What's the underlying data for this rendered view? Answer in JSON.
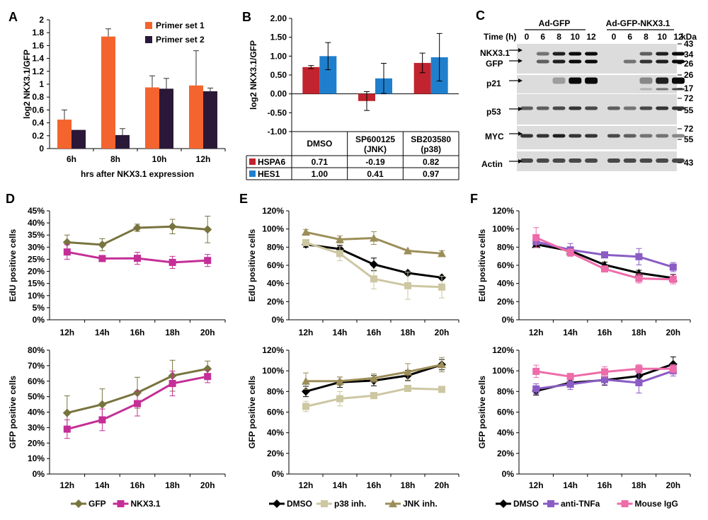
{
  "colors": {
    "orange": "#F4642E",
    "dark_purple": "#2B1838",
    "red": "#C1242E",
    "blue": "#1F7FCC",
    "olive": "#78743E",
    "magenta": "#C42E96",
    "black": "#000000",
    "khaki": "#CDC7A2",
    "tan": "#9C8E58",
    "purple": "#8A5CC4",
    "pink": "#EE6CAA"
  },
  "panels": {
    "A": {
      "label": "A"
    },
    "B": {
      "label": "B"
    },
    "C": {
      "label": "C"
    },
    "D": {
      "label": "D"
    },
    "E": {
      "label": "E"
    },
    "F": {
      "label": "F"
    }
  },
  "western_blot": {
    "header_gfp": "Ad-GFP",
    "header_nkx": "Ad-GFP-NKX3.1",
    "time_label": "Time (h)",
    "times": [
      "0",
      "6",
      "8",
      "10",
      "12",
      "0",
      "6",
      "8",
      "10",
      "12"
    ],
    "kda_label": "kDa",
    "rows": [
      {
        "name": "NKX3.1",
        "name2": "GFP",
        "markers": [
          "43",
          "34",
          "26"
        ]
      },
      {
        "name": "p21",
        "markers": [
          "26",
          "17"
        ]
      },
      {
        "name": "p53",
        "markers": [
          "72",
          "55"
        ]
      },
      {
        "name": "MYC",
        "markers": [
          "72",
          "55"
        ]
      },
      {
        "name": "Actin",
        "markers": [
          "43"
        ]
      }
    ]
  },
  "chart_data": [
    {
      "id": "A",
      "type": "bar",
      "categories": [
        "6h",
        "8h",
        "10h",
        "12h"
      ],
      "series": [
        {
          "name": "Primer set 1",
          "values": [
            0.45,
            1.74,
            0.95,
            0.98
          ],
          "errors": [
            0.15,
            0.12,
            0.18,
            0.54
          ]
        },
        {
          "name": "Primer set 2",
          "values": [
            0.29,
            0.21,
            0.93,
            0.89
          ],
          "errors": [
            0.0,
            0.1,
            0.16,
            0.05
          ]
        }
      ],
      "ylim": [
        0,
        2
      ],
      "yticks": [
        "0",
        "0.2",
        "0.4",
        "0.6",
        "0.8",
        "1",
        "1.2",
        "1.4",
        "1.6",
        "1.8",
        "2"
      ],
      "xlabel": "hrs after NKX3.1 expression",
      "ylabel": "log2 NKX3.1/GFP",
      "legend": "top-right"
    },
    {
      "id": "B",
      "type": "bar",
      "categories": [
        "DMSO",
        "SP600125\n(JNK)",
        "SB203580\n(p38)"
      ],
      "category_lines": [
        [
          "DMSO"
        ],
        [
          "SP600125",
          "(JNK)"
        ],
        [
          "SB203580",
          "(p38)"
        ]
      ],
      "series": [
        {
          "name": "HSPA6",
          "values": [
            0.71,
            -0.19,
            0.82
          ],
          "labels": [
            "0.71",
            "-0.19",
            "0.82"
          ],
          "errors": [
            0.04,
            0.25,
            0.26
          ]
        },
        {
          "name": "HES1",
          "values": [
            1.0,
            0.41,
            0.97
          ],
          "labels": [
            "1.00",
            "0.41",
            "0.97"
          ],
          "errors": [
            0.36,
            0.4,
            0.63
          ]
        }
      ],
      "ylim": [
        -1,
        2
      ],
      "yticks": [
        "-1.00",
        "-0.50",
        "0.00",
        "0.50",
        "1.00",
        "1.50",
        "2.00"
      ],
      "ylabel": "log2 NKX3.1/GFP",
      "legend": "data-table"
    },
    {
      "id": "D-top",
      "type": "line",
      "x": [
        "12h",
        "14h",
        "16h",
        "18h",
        "20h"
      ],
      "series": [
        {
          "name": "GFP",
          "values": [
            32,
            31,
            38,
            38.5,
            37.3
          ],
          "errors": [
            3,
            2.5,
            1.5,
            3,
            5.5
          ]
        },
        {
          "name": "NKX3.1",
          "values": [
            28,
            25.3,
            25.4,
            23.7,
            24.5
          ],
          "errors": [
            3,
            1,
            2.5,
            2.5,
            2.5
          ]
        }
      ],
      "ylim": [
        0,
        45
      ],
      "yticks": [
        "0%",
        "5%",
        "10%",
        "15%",
        "20%",
        "25%",
        "30%",
        "35%",
        "40%",
        "45%"
      ],
      "ylabel": "EdU positive cells"
    },
    {
      "id": "D-bottom",
      "type": "line",
      "x": [
        "12h",
        "14h",
        "16h",
        "18h",
        "20h"
      ],
      "series": [
        {
          "name": "GFP",
          "values": [
            39.5,
            45,
            52.5,
            63.5,
            68
          ],
          "errors": [
            11,
            10,
            10,
            10,
            5
          ]
        },
        {
          "name": "NKX3.1",
          "values": [
            29,
            35,
            45.5,
            58.5,
            63
          ],
          "errors": [
            6,
            7,
            8,
            8,
            4
          ]
        }
      ],
      "ylim": [
        0,
        80
      ],
      "yticks": [
        "0%",
        "10%",
        "20%",
        "30%",
        "40%",
        "50%",
        "60%",
        "70%",
        "80%"
      ],
      "ylabel": "GFP positive cells",
      "legend": [
        "GFP",
        "NKX3.1"
      ]
    },
    {
      "id": "E-top",
      "type": "line",
      "x": [
        "12h",
        "14h",
        "16h",
        "18h",
        "20h"
      ],
      "series": [
        {
          "name": "DMSO",
          "values": [
            83,
            78,
            61,
            51.5,
            46.5
          ],
          "errors": [
            3,
            4,
            7,
            0,
            0
          ]
        },
        {
          "name": "p38 inh.",
          "values": [
            85,
            73,
            45,
            37.5,
            36
          ],
          "errors": [
            3,
            8,
            11,
            15,
            12
          ]
        },
        {
          "name": "JNK inh.",
          "values": [
            96.5,
            88.5,
            90,
            76,
            73
          ],
          "errors": [
            3,
            4,
            7,
            0,
            3
          ]
        }
      ],
      "ylim": [
        0,
        120
      ],
      "yticks": [
        "0%",
        "20%",
        "40%",
        "60%",
        "80%",
        "100%",
        "120%"
      ],
      "ylabel": "EdU positive cells"
    },
    {
      "id": "E-bottom",
      "type": "line",
      "x": [
        "12h",
        "14h",
        "16h",
        "18h",
        "20h"
      ],
      "series": [
        {
          "name": "DMSO",
          "values": [
            80,
            89,
            90.5,
            95.5,
            106
          ],
          "errors": [
            5,
            5,
            5,
            5,
            5
          ]
        },
        {
          "name": "p38 inh.",
          "values": [
            65.5,
            73,
            76,
            83,
            82
          ],
          "errors": [
            5,
            7,
            3,
            2,
            2
          ]
        },
        {
          "name": "JNK inh.",
          "values": [
            90,
            90,
            93,
            99,
            106
          ],
          "errors": [
            8,
            4,
            4,
            8,
            7
          ]
        }
      ],
      "ylim": [
        0,
        120
      ],
      "yticks": [
        "0%",
        "20%",
        "40%",
        "60%",
        "80%",
        "100%",
        "120%"
      ],
      "ylabel": "GFP positive cells",
      "legend": [
        "DMSO",
        "p38 inh.",
        "JNK inh."
      ]
    },
    {
      "id": "F-top",
      "type": "line",
      "x": [
        "12h",
        "14h",
        "16h",
        "18h",
        "20h"
      ],
      "series": [
        {
          "name": "DMSO",
          "values": [
            83,
            76,
            60.5,
            51.5,
            46
          ],
          "errors": [
            3,
            4,
            3,
            3,
            4
          ]
        },
        {
          "name": "anti-TNFa",
          "values": [
            86,
            77,
            71.5,
            69.5,
            58
          ],
          "errors": [
            3,
            7,
            0,
            9,
            5
          ]
        },
        {
          "name": "Mouse IgG",
          "values": [
            90.5,
            74,
            56,
            45.5,
            44.5
          ],
          "errors": [
            11,
            4,
            3,
            5,
            5
          ]
        }
      ],
      "ylim": [
        0,
        120
      ],
      "yticks": [
        "0%",
        "20%",
        "40%",
        "60%",
        "80%",
        "100%",
        "120%"
      ],
      "ylabel": "EdU positive cells"
    },
    {
      "id": "F-bottom",
      "type": "line",
      "x": [
        "12h",
        "14h",
        "16h",
        "18h",
        "20h"
      ],
      "series": [
        {
          "name": "DMSO",
          "values": [
            80.5,
            88.5,
            91,
            95,
            106.5
          ],
          "errors": [
            4,
            4,
            5,
            5,
            7
          ]
        },
        {
          "name": "anti-TNFa",
          "values": [
            82.5,
            87,
            91.5,
            88.5,
            100
          ],
          "errors": [
            5,
            5,
            5,
            10,
            5
          ]
        },
        {
          "name": "Mouse IgG",
          "values": [
            99.5,
            94.5,
            99,
            102,
            102
          ],
          "errors": [
            6,
            3,
            5,
            4,
            4
          ]
        }
      ],
      "ylim": [
        0,
        120
      ],
      "yticks": [
        "0%",
        "20%",
        "40%",
        "60%",
        "80%",
        "100%",
        "120%"
      ],
      "ylabel": "GFP positive cells",
      "legend": [
        "DMSO",
        "anti-TNFa",
        "Mouse IgG"
      ]
    }
  ]
}
